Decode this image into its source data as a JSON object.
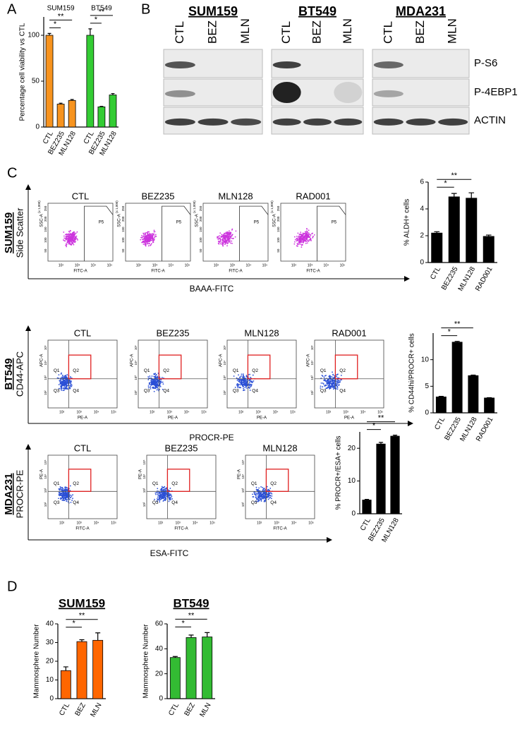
{
  "panels": [
    "A",
    "B",
    "C",
    "D"
  ],
  "chart_data": [
    {
      "type": "bar",
      "ylabel": "Percentage cell viability vs CTL",
      "ylim": [
        0,
        120
      ],
      "yticks": [
        0,
        50,
        100
      ],
      "groups": [
        {
          "name": "SUM159",
          "color": "#f7931e",
          "categories": [
            "CTL",
            "BEZ235",
            "MLN128"
          ],
          "values": [
            100,
            25,
            29
          ],
          "errors": [
            2,
            1,
            1
          ],
          "significance": [
            "*",
            "**"
          ]
        },
        {
          "name": "BT549",
          "color": "#33cc33",
          "categories": [
            "CTL",
            "BEZ235",
            "MLN128"
          ],
          "values": [
            100,
            22,
            35
          ],
          "errors": [
            7,
            0.5,
            1.5
          ],
          "significance": [
            "*",
            "**"
          ]
        }
      ]
    },
    {
      "type": "bar",
      "ylabel": "% ALDH+ cells",
      "ylim": [
        0,
        6
      ],
      "yticks": [
        0,
        2,
        4,
        6
      ],
      "color": "#000000",
      "categories": [
        "CTL",
        "BEZ235",
        "MLN128",
        "RAD001"
      ],
      "values": [
        2.2,
        4.9,
        4.8,
        1.95
      ],
      "errors": [
        0.1,
        0.25,
        0.4,
        0.1
      ],
      "significance": [
        "*",
        "**"
      ]
    },
    {
      "type": "bar",
      "ylabel": "% CD44hi/PROCR+ cells",
      "ylim": [
        0,
        15
      ],
      "yticks": [
        0,
        5,
        10
      ],
      "color": "#000000",
      "categories": [
        "CTL",
        "BEZ235",
        "MLN128",
        "RAD001"
      ],
      "values": [
        3,
        13.3,
        7,
        2.8
      ],
      "errors": [
        0.1,
        0.15,
        0.1,
        0.05
      ],
      "significance": [
        "*",
        "**"
      ]
    },
    {
      "type": "bar",
      "ylabel": "% PROCR+/ESA+ cells",
      "ylim": [
        0,
        25
      ],
      "yticks": [
        0,
        10,
        20
      ],
      "color": "#000000",
      "categories": [
        "CTL",
        "BEZ235",
        "MLN128"
      ],
      "values": [
        4.2,
        21.3,
        23.7
      ],
      "errors": [
        0.2,
        0.5,
        0.3
      ],
      "significance": [
        "*",
        "**"
      ]
    },
    {
      "type": "bar",
      "title": "SUM159",
      "ylabel": "Mammosphere Number",
      "ylim": [
        0,
        40
      ],
      "yticks": [
        0,
        10,
        20,
        30,
        40
      ],
      "color": "#ff6600",
      "categories": [
        "CTL",
        "BEZ",
        "MLN"
      ],
      "values": [
        15,
        30.5,
        31.2
      ],
      "errors": [
        2,
        1,
        4
      ],
      "significance": [
        "*",
        "**"
      ]
    },
    {
      "type": "bar",
      "title": "BT549",
      "ylabel": "Mammosphere Number",
      "ylim": [
        0,
        60
      ],
      "yticks": [
        0,
        20,
        40,
        60
      ],
      "color": "#33bb33",
      "categories": [
        "CTL",
        "BEZ",
        "MLN"
      ],
      "values": [
        33,
        49,
        49.5
      ],
      "errors": [
        0.8,
        2,
        3.5
      ],
      "significance": [
        "*",
        "**"
      ]
    }
  ],
  "blots": {
    "cell_lines": [
      "SUM159",
      "BT549",
      "MDA231"
    ],
    "lanes": [
      "CTL",
      "BEZ",
      "MLN"
    ],
    "proteins": [
      "P-S6",
      "P-4EBP1",
      "ACTIN"
    ]
  },
  "flow": [
    {
      "row_label": "SUM159",
      "y_label": "Side Scatter",
      "x_label": "BAAA-FITC",
      "plot_titles": [
        "CTL",
        "BEZ235",
        "MLN128",
        "RAD001"
      ],
      "plot_x_label": "FITC-A",
      "plot_y_label": "SSC-A",
      "gate_labels": [
        "P5"
      ],
      "xticks": [
        "10²",
        "10³",
        "10⁴",
        "10⁵"
      ],
      "yticks": [
        "50",
        "100",
        "150",
        "200",
        "250"
      ],
      "y_unit": "(x 1,000)"
    },
    {
      "row_label": "BT549",
      "y_label": "CD44-APC",
      "x_label": "PROCR-PE",
      "plot_titles": [
        "CTL",
        "BEZ235",
        "MLN128",
        "RAD001"
      ],
      "plot_x_label": "PE-A",
      "plot_y_label": "APC-A",
      "gate_labels": [
        "Q1",
        "Q2",
        "Q3",
        "Q4"
      ],
      "xticks": [
        "10²",
        "10³",
        "10⁴",
        "10⁵"
      ],
      "yticks": [
        "10²",
        "10³",
        "10⁴",
        "10⁵"
      ]
    },
    {
      "row_label": "MDA231",
      "y_label": "PROCR-PE",
      "x_label": "ESA-FITC",
      "plot_titles": [
        "CTL",
        "BEZ235",
        "MLN128"
      ],
      "plot_x_label": "FITC-A",
      "plot_y_label": "PE-A",
      "gate_labels": [
        "Q1",
        "Q2",
        "Q3",
        "Q4"
      ],
      "xticks": [
        "10²",
        "10³",
        "10⁴",
        "10⁵"
      ],
      "yticks": [
        "10²",
        "10³",
        "10⁴",
        "10⁵"
      ]
    }
  ]
}
